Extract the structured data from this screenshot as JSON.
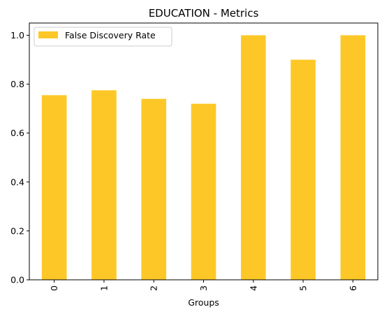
{
  "chart_data": {
    "type": "bar",
    "title": "EDUCATION - Metrics",
    "xlabel": "Groups",
    "ylabel": "",
    "categories": [
      "0",
      "1",
      "2",
      "3",
      "4",
      "5",
      "6"
    ],
    "series": [
      {
        "name": "False Discovery Rate",
        "values": [
          0.755,
          0.775,
          0.74,
          0.72,
          1.0,
          0.9,
          1.0
        ],
        "color": "#fdc827"
      }
    ],
    "ylim": [
      0,
      1.05
    ],
    "yticks": [
      0.0,
      0.2,
      0.4,
      0.6,
      0.8,
      1.0
    ],
    "ytick_labels": [
      "0.0",
      "0.2",
      "0.4",
      "0.6",
      "0.8",
      "1.0"
    ],
    "xtick_rotation": "vertical",
    "grid": false,
    "legend_position": "top-left"
  }
}
